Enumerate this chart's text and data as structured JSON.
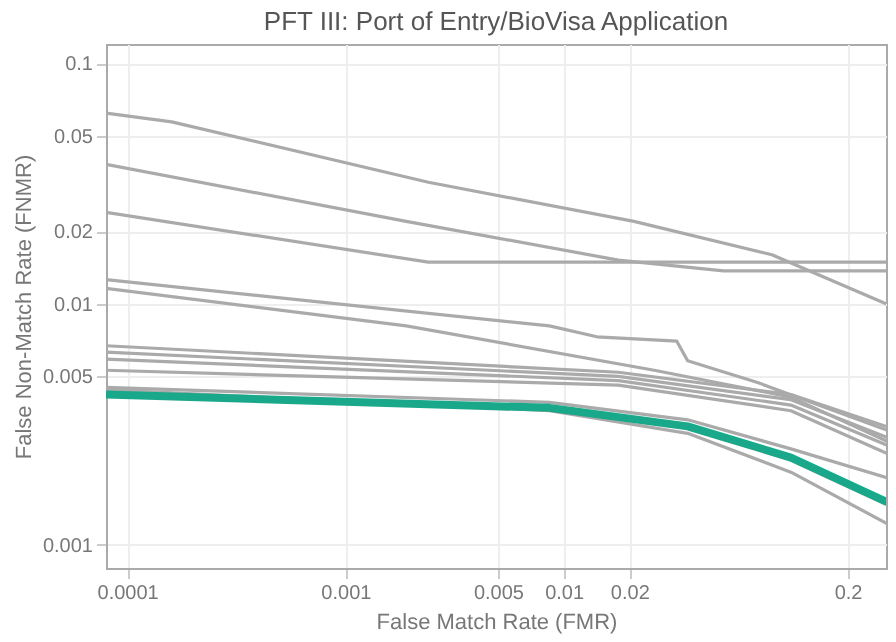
{
  "chart_data": {
    "type": "line",
    "title": "PFT III: Port of Entry/BioVisa Application",
    "xlabel": "False Match Rate (FMR)",
    "ylabel": "False Non-Match Rate (FNMR)",
    "log": "xy",
    "grid": true,
    "legend": false,
    "line_style": "solid",
    "marker": "none",
    "xlim": [
      8e-05,
      0.3
    ],
    "ylim": [
      0.0008,
      0.12
    ],
    "xticks": [
      0.0001,
      0.001,
      0.005,
      0.01,
      0.02,
      0.2
    ],
    "yticks": [
      0.001,
      0.005,
      0.01,
      0.02,
      0.05,
      0.1
    ],
    "series": [
      {
        "color": "#aaaaaa",
        "x": [
          8e-05,
          0.00016,
          0.0024,
          0.021,
          0.09,
          0.3
        ],
        "values": [
          0.062,
          0.057,
          0.032,
          0.022,
          0.016,
          0.01
        ]
      },
      {
        "color": "#aaaaaa",
        "x": [
          8e-05,
          0.0019,
          0.0178,
          0.054,
          0.3
        ],
        "values": [
          0.038,
          0.022,
          0.0152,
          0.0137,
          0.0137
        ]
      },
      {
        "color": "#aaaaaa",
        "x": [
          8e-05,
          0.0024,
          0.3
        ],
        "values": [
          0.024,
          0.0149,
          0.0149
        ]
      },
      {
        "color": "#aaaaaa",
        "x": [
          8e-05,
          0.0086,
          0.0142,
          0.033,
          0.037,
          0.078,
          0.3
        ],
        "values": [
          0.0126,
          0.0081,
          0.0073,
          0.007,
          0.0058,
          0.0047,
          0.003
        ]
      },
      {
        "color": "#aaaaaa",
        "x": [
          8e-05,
          0.0019,
          0.026,
          0.11,
          0.3
        ],
        "values": [
          0.0116,
          0.0081,
          0.0053,
          0.0041,
          0.0027
        ]
      },
      {
        "color": "#aaaaaa",
        "x": [
          8e-05,
          0.0178,
          0.11,
          0.3
        ],
        "values": [
          0.0067,
          0.0052,
          0.0042,
          0.0031
        ]
      },
      {
        "color": "#aaaaaa",
        "x": [
          8e-05,
          0.0178,
          0.11,
          0.3
        ],
        "values": [
          0.0063,
          0.005,
          0.004,
          0.0028
        ]
      },
      {
        "color": "#aaaaaa",
        "x": [
          8e-05,
          0.0178,
          0.11,
          0.3
        ],
        "values": [
          0.0059,
          0.0048,
          0.0038,
          0.0026
        ]
      },
      {
        "color": "#aaaaaa",
        "x": [
          8e-05,
          0.0178,
          0.11,
          0.3
        ],
        "values": [
          0.0053,
          0.0046,
          0.0036,
          0.0024
        ]
      },
      {
        "color": "#aaaaaa",
        "x": [
          8e-05,
          0.0086,
          0.037,
          0.11,
          0.3
        ],
        "values": [
          0.0045,
          0.0039,
          0.0033,
          0.0025,
          0.0019
        ]
      },
      {
        "color": "#aaaaaa",
        "x": [
          8e-05,
          0.0086,
          0.037,
          0.11,
          0.3
        ],
        "values": [
          0.0044,
          0.0036,
          0.0029,
          0.002,
          0.00123
        ]
      },
      {
        "color": "#1aa88a",
        "x": [
          8e-05,
          0.0086,
          0.037,
          0.11,
          0.3
        ],
        "values": [
          0.0042,
          0.0037,
          0.0031,
          0.0023,
          0.00151
        ]
      }
    ]
  }
}
